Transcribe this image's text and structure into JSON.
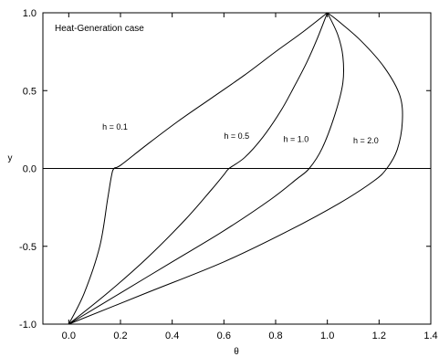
{
  "chart_data": {
    "type": "line",
    "title": "",
    "annotation": "Heat-Generation case",
    "xlabel": "θ",
    "ylabel": "y",
    "xlim": [
      -0.1,
      1.4
    ],
    "ylim": [
      -1.0,
      1.0
    ],
    "x_ticks": [
      {
        "value": 0.0,
        "label": "0.0"
      },
      {
        "value": 0.2,
        "label": "0.2"
      },
      {
        "value": 0.4,
        "label": "0.4"
      },
      {
        "value": 0.6,
        "label": "0.6"
      },
      {
        "value": 0.8,
        "label": "0.8"
      },
      {
        "value": 1.0,
        "label": "1.0"
      },
      {
        "value": 1.2,
        "label": "1.2"
      },
      {
        "value": 1.4,
        "label": "1.4"
      }
    ],
    "y_ticks": [
      {
        "value": -1.0,
        "label": "-1.0"
      },
      {
        "value": -0.5,
        "label": "-0.5"
      },
      {
        "value": 0.0,
        "label": "0.0"
      },
      {
        "value": 0.5,
        "label": "0.5"
      },
      {
        "value": 1.0,
        "label": "1.0"
      }
    ],
    "zero_line": 0.0,
    "grid": false,
    "series": [
      {
        "name": "h = 0.1",
        "label_at": [
          0.13,
          0.25
        ],
        "points": [
          [
            0.0,
            -1.0
          ],
          [
            0.06,
            -0.8
          ],
          [
            0.12,
            -0.5
          ],
          [
            0.15,
            -0.2
          ],
          [
            0.165,
            -0.05
          ],
          [
            0.175,
            0.0
          ],
          [
            0.2,
            0.02
          ],
          [
            0.3,
            0.15
          ],
          [
            0.42,
            0.3
          ],
          [
            0.55,
            0.45
          ],
          [
            0.68,
            0.6
          ],
          [
            0.8,
            0.75
          ],
          [
            0.9,
            0.87
          ],
          [
            1.0,
            1.0
          ]
        ]
      },
      {
        "name": "h = 0.5",
        "label_at": [
          0.6,
          0.19
        ],
        "points": [
          [
            0.0,
            -1.0
          ],
          [
            0.15,
            -0.8
          ],
          [
            0.3,
            -0.58
          ],
          [
            0.45,
            -0.33
          ],
          [
            0.55,
            -0.14
          ],
          [
            0.6,
            -0.04
          ],
          [
            0.62,
            0.0
          ],
          [
            0.68,
            0.07
          ],
          [
            0.75,
            0.2
          ],
          [
            0.82,
            0.37
          ],
          [
            0.87,
            0.52
          ],
          [
            0.92,
            0.68
          ],
          [
            0.96,
            0.83
          ],
          [
            1.0,
            1.0
          ]
        ]
      },
      {
        "name": "h = 1.0",
        "label_at": [
          0.83,
          0.17
        ],
        "points": [
          [
            0.0,
            -1.0
          ],
          [
            0.2,
            -0.8
          ],
          [
            0.4,
            -0.6
          ],
          [
            0.6,
            -0.4
          ],
          [
            0.78,
            -0.2
          ],
          [
            0.88,
            -0.07
          ],
          [
            0.93,
            0.0
          ],
          [
            0.98,
            0.13
          ],
          [
            1.03,
            0.35
          ],
          [
            1.06,
            0.55
          ],
          [
            1.06,
            0.72
          ],
          [
            1.04,
            0.86
          ],
          [
            1.0,
            1.0
          ]
        ]
      },
      {
        "name": "h = 2.0",
        "label_at": [
          1.1,
          0.16
        ],
        "points": [
          [
            0.0,
            -1.0
          ],
          [
            0.3,
            -0.8
          ],
          [
            0.6,
            -0.6
          ],
          [
            0.85,
            -0.4
          ],
          [
            1.05,
            -0.22
          ],
          [
            1.18,
            -0.08
          ],
          [
            1.23,
            0.0
          ],
          [
            1.27,
            0.12
          ],
          [
            1.29,
            0.3
          ],
          [
            1.28,
            0.47
          ],
          [
            1.22,
            0.65
          ],
          [
            1.13,
            0.82
          ],
          [
            1.04,
            0.95
          ],
          [
            1.0,
            1.0
          ]
        ]
      }
    ]
  }
}
